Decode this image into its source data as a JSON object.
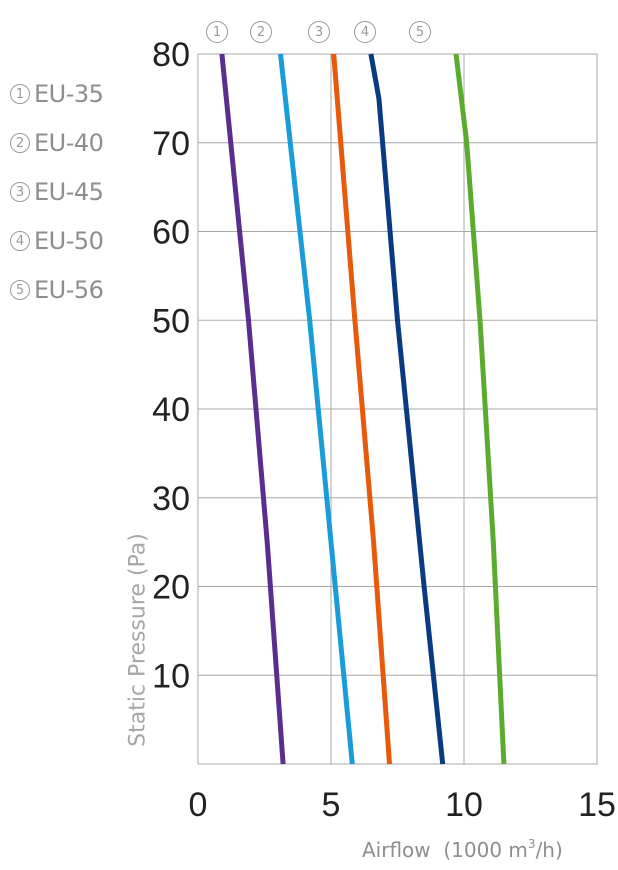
{
  "chart_data": {
    "type": "line",
    "xlabel_text": "Airflow",
    "xlabel_unit_prefix": "(1000 m",
    "xlabel_unit_sup": "3",
    "xlabel_unit_suffix": "/h)",
    "ylabel": "Static Pressure (Pa)",
    "xlim": [
      0,
      15
    ],
    "ylim": [
      0,
      80
    ],
    "xticks": [
      0,
      5,
      10,
      15
    ],
    "yticks": [
      10,
      20,
      30,
      40,
      50,
      60,
      70,
      80
    ],
    "grid": true,
    "legend_position": "left",
    "series": [
      {
        "marker": "1",
        "name": "EU-35",
        "color": "#5b2d8e",
        "x": [
          0.9,
          1.9,
          2.6,
          3.2
        ],
        "y": [
          80,
          50,
          25,
          0
        ]
      },
      {
        "marker": "2",
        "name": "EU-40",
        "color": "#1a9cd8",
        "x": [
          3.1,
          4.2,
          5.0,
          5.8
        ],
        "y": [
          80,
          50,
          25,
          0
        ]
      },
      {
        "marker": "3",
        "name": "EU-45",
        "color": "#e8590c",
        "x": [
          5.1,
          5.9,
          6.6,
          7.2
        ],
        "y": [
          80,
          50,
          25,
          0
        ]
      },
      {
        "marker": "4",
        "name": "EU-50",
        "color": "#0a3a82",
        "x": [
          6.5,
          6.8,
          7.5,
          8.5,
          9.2
        ],
        "y": [
          80,
          75,
          50,
          20,
          0
        ]
      },
      {
        "marker": "5",
        "name": "EU-56",
        "color": "#5aab2e",
        "x": [
          9.7,
          10.1,
          10.6,
          11.1,
          11.5
        ],
        "y": [
          80,
          70,
          50,
          25,
          0
        ]
      }
    ]
  }
}
